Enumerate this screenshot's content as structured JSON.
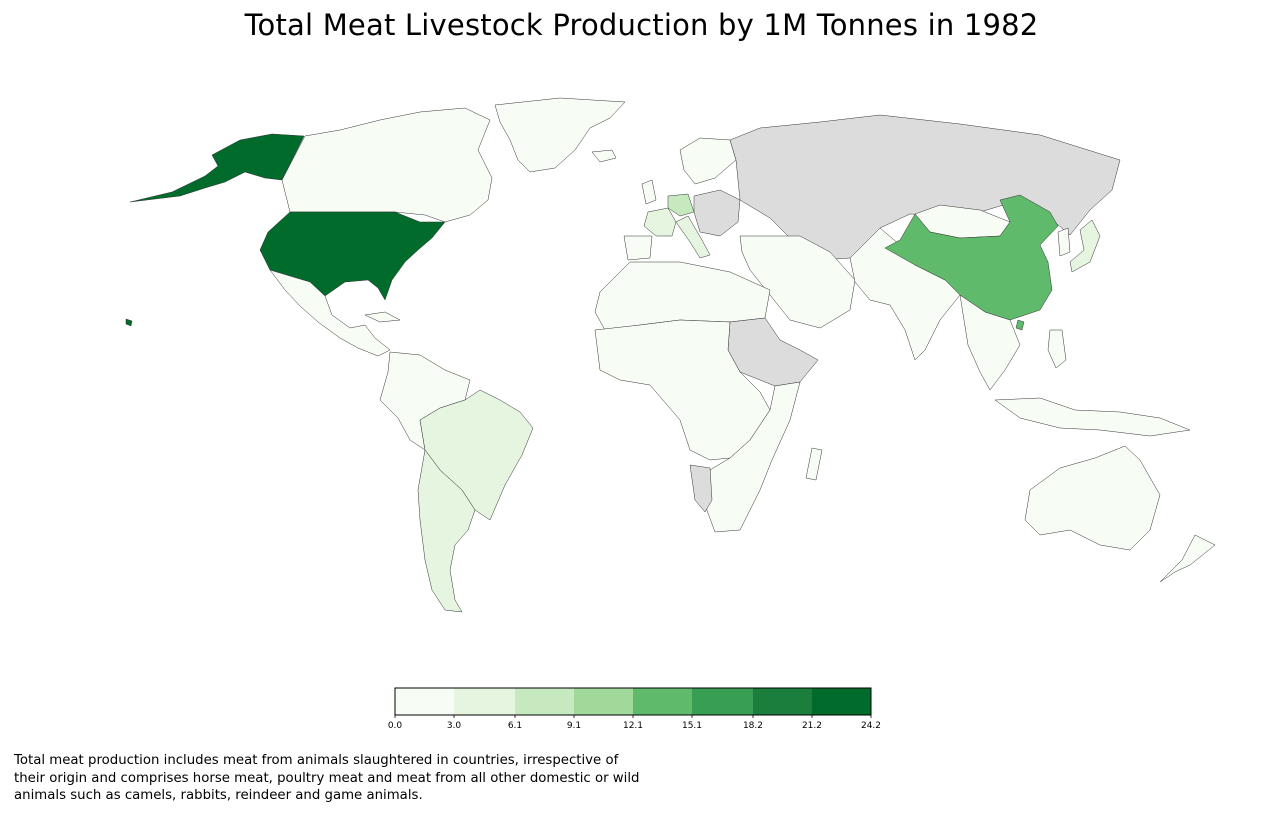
{
  "title": "Total Meat Livestock Production by 1M Tonnes in 1982",
  "caption_lines": [
    "Total meat production includes meat from animals slaughtered in countries, irrespective of",
    "their origin and comprises horse meat, poultry meat and meat from all other domestic or wild",
    "animals such as camels, rabbits, reindeer and game animals."
  ],
  "colors": {
    "no_data": "#dcdcdc",
    "border": "#333333",
    "bins": [
      "#f7fcf5",
      "#e5f5e0",
      "#c7e9c0",
      "#a1d99b",
      "#5fba6c",
      "#379e54",
      "#1b7e3c",
      "#006b2b"
    ]
  },
  "legend": {
    "ticks": [
      "0.0",
      "3.0",
      "6.1",
      "9.1",
      "12.1",
      "15.1",
      "18.2",
      "21.2",
      "24.2"
    ]
  },
  "chart_data": {
    "type": "choropleth",
    "value_range": [
      0.0,
      24.2
    ],
    "bin_edges": [
      0.0,
      3.0,
      6.1,
      9.1,
      12.1,
      15.1,
      18.2,
      21.2,
      24.2
    ],
    "regions": [
      {
        "name": "United States",
        "bin": 7
      },
      {
        "name": "China",
        "bin": 4
      },
      {
        "name": "Germany",
        "bin": 2
      },
      {
        "name": "France",
        "bin": 1
      },
      {
        "name": "Brazil",
        "bin": 1
      },
      {
        "name": "Argentina",
        "bin": 1
      },
      {
        "name": "Japan",
        "bin": 1
      },
      {
        "name": "Italy",
        "bin": 1
      },
      {
        "name": "Canada",
        "bin": 0
      },
      {
        "name": "Mexico",
        "bin": 0
      },
      {
        "name": "Australia",
        "bin": 0
      },
      {
        "name": "India",
        "bin": 0
      },
      {
        "name": "Mongolia",
        "bin": 0
      },
      {
        "name": "USSR",
        "bin": null
      },
      {
        "name": "Sudan",
        "bin": null
      },
      {
        "name": "Ethiopia",
        "bin": null
      },
      {
        "name": "Namibia",
        "bin": null
      }
    ]
  }
}
